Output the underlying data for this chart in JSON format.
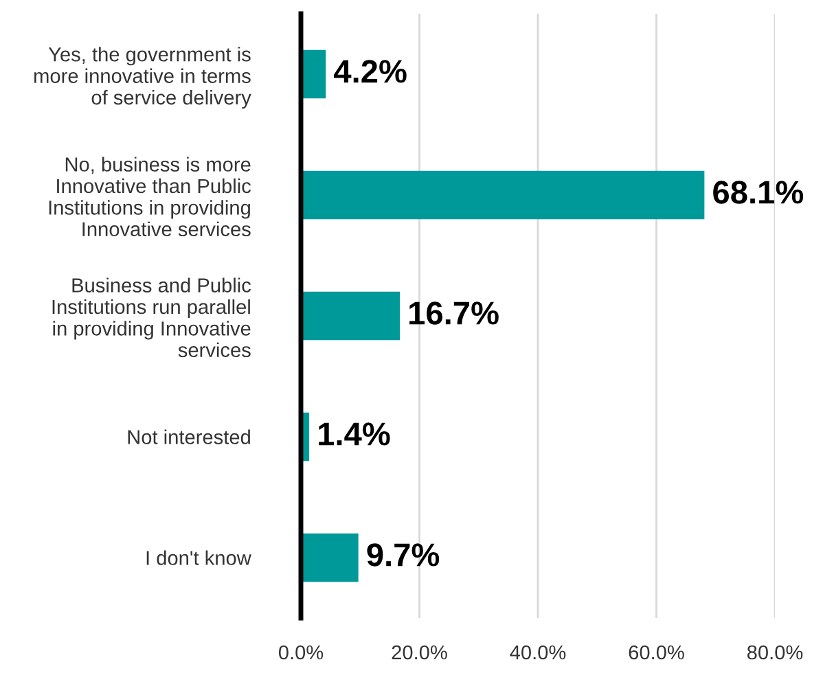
{
  "chart_data": {
    "type": "bar",
    "orientation": "horizontal",
    "categories": [
      "Yes, the government is\nmore innovative in terms\nof service delivery",
      "No, business is more\nInnovative than Public\nInstitutions in providing\nInnovative services",
      "Business and Public\nInstitutions run parallel\nin providing Innovative\nservices",
      "Not interested",
      "I don't know"
    ],
    "values": [
      4.2,
      68.1,
      16.7,
      1.4,
      9.7
    ],
    "value_labels": [
      "4.2%",
      "68.1%",
      "16.7%",
      "1.4%",
      "9.7%"
    ],
    "color": "#00999a",
    "xlim": [
      0,
      80
    ],
    "xticks": [
      {
        "value": 0,
        "label": "0.0%"
      },
      {
        "value": 20,
        "label": "20.0%"
      },
      {
        "value": 40,
        "label": "40.0%"
      },
      {
        "value": 60,
        "label": "60.0%"
      },
      {
        "value": 80,
        "label": "80.0%"
      }
    ],
    "grid": "x",
    "legend": false
  }
}
